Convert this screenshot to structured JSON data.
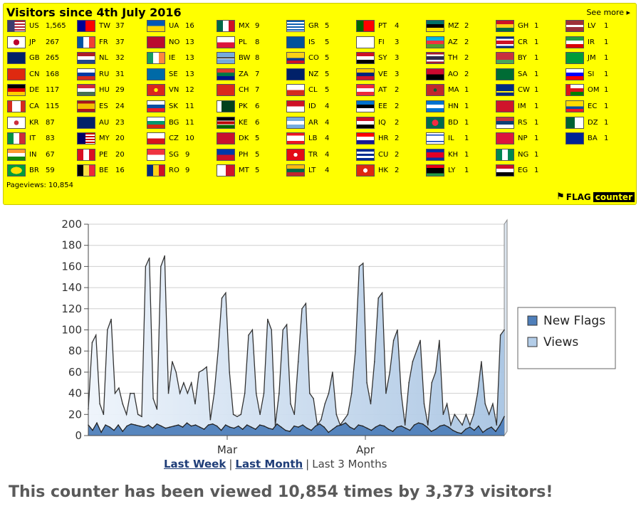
{
  "panel": {
    "title": "Visitors since 4th July 2016",
    "see_more": "See more",
    "pageviews_label": "Pageviews: 10,854",
    "logo_flag": "FLAG",
    "logo_counter": "counter"
  },
  "flag_columns": [
    [
      {
        "code": "US",
        "count": "1,565"
      },
      {
        "code": "JP",
        "count": "267"
      },
      {
        "code": "GB",
        "count": "265"
      },
      {
        "code": "CN",
        "count": "168"
      },
      {
        "code": "DE",
        "count": "117"
      },
      {
        "code": "CA",
        "count": "115"
      },
      {
        "code": "KR",
        "count": "87"
      },
      {
        "code": "IT",
        "count": "83"
      },
      {
        "code": "IN",
        "count": "67"
      },
      {
        "code": "BR",
        "count": "59"
      }
    ],
    [
      {
        "code": "TW",
        "count": "37"
      },
      {
        "code": "FR",
        "count": "37"
      },
      {
        "code": "NL",
        "count": "32"
      },
      {
        "code": "RU",
        "count": "31"
      },
      {
        "code": "HU",
        "count": "29"
      },
      {
        "code": "ES",
        "count": "24"
      },
      {
        "code": "AU",
        "count": "23"
      },
      {
        "code": "MY",
        "count": "20"
      },
      {
        "code": "PE",
        "count": "20"
      },
      {
        "code": "BE",
        "count": "16"
      }
    ],
    [
      {
        "code": "UA",
        "count": "16"
      },
      {
        "code": "NO",
        "count": "13"
      },
      {
        "code": "IE",
        "count": "13"
      },
      {
        "code": "SE",
        "count": "13"
      },
      {
        "code": "VN",
        "count": "12"
      },
      {
        "code": "SK",
        "count": "11"
      },
      {
        "code": "BG",
        "count": "11"
      },
      {
        "code": "CZ",
        "count": "10"
      },
      {
        "code": "SG",
        "count": "9"
      },
      {
        "code": "RO",
        "count": "9"
      }
    ],
    [
      {
        "code": "MX",
        "count": "9"
      },
      {
        "code": "PL",
        "count": "8"
      },
      {
        "code": "BW",
        "count": "8"
      },
      {
        "code": "ZA",
        "count": "7"
      },
      {
        "code": "CH",
        "count": "7"
      },
      {
        "code": "PK",
        "count": "6"
      },
      {
        "code": "KE",
        "count": "6"
      },
      {
        "code": "DK",
        "count": "5"
      },
      {
        "code": "PH",
        "count": "5"
      },
      {
        "code": "MT",
        "count": "5"
      }
    ],
    [
      {
        "code": "GR",
        "count": "5"
      },
      {
        "code": "IS",
        "count": "5"
      },
      {
        "code": "CO",
        "count": "5"
      },
      {
        "code": "NZ",
        "count": "5"
      },
      {
        "code": "CL",
        "count": "5"
      },
      {
        "code": "ID",
        "count": "4"
      },
      {
        "code": "AR",
        "count": "4"
      },
      {
        "code": "LB",
        "count": "4"
      },
      {
        "code": "TR",
        "count": "4"
      },
      {
        "code": "LT",
        "count": "4"
      }
    ],
    [
      {
        "code": "PT",
        "count": "4"
      },
      {
        "code": "FI",
        "count": "3"
      },
      {
        "code": "SY",
        "count": "3"
      },
      {
        "code": "VE",
        "count": "3"
      },
      {
        "code": "AT",
        "count": "2"
      },
      {
        "code": "EE",
        "count": "2"
      },
      {
        "code": "IQ",
        "count": "2"
      },
      {
        "code": "HR",
        "count": "2"
      },
      {
        "code": "CU",
        "count": "2"
      },
      {
        "code": "HK",
        "count": "2"
      }
    ],
    [
      {
        "code": "MZ",
        "count": "2"
      },
      {
        "code": "AZ",
        "count": "2"
      },
      {
        "code": "TH",
        "count": "2"
      },
      {
        "code": "AO",
        "count": "2"
      },
      {
        "code": "MA",
        "count": "1"
      },
      {
        "code": "HN",
        "count": "1"
      },
      {
        "code": "BD",
        "count": "1"
      },
      {
        "code": "IL",
        "count": "1"
      },
      {
        "code": "KH",
        "count": "1"
      },
      {
        "code": "LY",
        "count": "1"
      }
    ],
    [
      {
        "code": "GH",
        "count": "1"
      },
      {
        "code": "CR",
        "count": "1"
      },
      {
        "code": "BY",
        "count": "1"
      },
      {
        "code": "SA",
        "count": "1"
      },
      {
        "code": "CW",
        "count": "1"
      },
      {
        "code": "IM",
        "count": "1"
      },
      {
        "code": "RS",
        "count": "1"
      },
      {
        "code": "NP",
        "count": "1"
      },
      {
        "code": "NG",
        "count": "1"
      },
      {
        "code": "EG",
        "count": "1"
      }
    ],
    [
      {
        "code": "LV",
        "count": "1"
      },
      {
        "code": "IR",
        "count": "1"
      },
      {
        "code": "JM",
        "count": "1"
      },
      {
        "code": "SI",
        "count": "1"
      },
      {
        "code": "OM",
        "count": "1"
      },
      {
        "code": "EC",
        "count": "1"
      },
      {
        "code": "DZ",
        "count": "1"
      },
      {
        "code": "BA",
        "count": "1"
      }
    ]
  ],
  "flag_styles": {
    "US": "linear-gradient(to right,#3c3b6e 40%,transparent 40%),repeating-linear-gradient(#b22234 0 2px,#ffffff 2px 4px)",
    "JP": "radial-gradient(circle,#bc002d 28%,#ffffff 30%)",
    "GB": "linear-gradient(#012169,#012169)",
    "CN": "linear-gradient(#de2910,#de2910)",
    "DE": "linear-gradient(#000 33%,#dd0000 33% 66%,#ffce00 66%)",
    "CA": "linear-gradient(to right,#d52b1e 25%,#ffffff 25% 75%,#d52b1e 75%)",
    "KR": "radial-gradient(circle,#cd2e3a 22%,#ffffff 24%)",
    "IT": "linear-gradient(to right,#009246 33%,#ffffff 33% 66%,#ce2b37 66%)",
    "IN": "linear-gradient(#ff9933 33%,#ffffff 33% 66%,#138808 66%)",
    "BR": "radial-gradient(ellipse,#fedf00 45%,#009c3b 47%)",
    "TW": "linear-gradient(to right,#000095 45%,#fe0000 45%)",
    "FR": "linear-gradient(to right,#0055a4 33%,#ffffff 33% 66%,#ef4135 66%)",
    "NL": "linear-gradient(#ae1c28 33%,#ffffff 33% 66%,#21468b 66%)",
    "RU": "linear-gradient(#ffffff 33%,#0039a6 33% 66%,#d52b1e 66%)",
    "HU": "linear-gradient(#ce2939 33%,#ffffff 33% 66%,#477050 66%)",
    "ES": "linear-gradient(#aa151b 25%,#f1bf00 25% 75%,#aa151b 75%)",
    "AU": "linear-gradient(#012169,#012169)",
    "MY": "linear-gradient(to right,#010066 45%,transparent 45%),repeating-linear-gradient(#cc0001 0 2px,#ffffff 2px 4px)",
    "PE": "linear-gradient(to right,#d91023 33%,#ffffff 33% 66%,#d91023 66%)",
    "BE": "linear-gradient(to right,#000 33%,#fae042 33% 66%,#ed2939 66%)",
    "UA": "linear-gradient(#0057b7 50%,#ffd700 50%)",
    "NO": "linear-gradient(#ba0c2f,#ba0c2f)",
    "IE": "linear-gradient(to right,#169b62 33%,#ffffff 33% 66%,#ff883e 66%)",
    "SE": "linear-gradient(#006aa7,#006aa7)",
    "VN": "radial-gradient(circle,#ffff00 18%,#da251d 20%)",
    "SK": "linear-gradient(#ffffff 33%,#0b4ea2 33% 66%,#ee1c25 66%)",
    "BG": "linear-gradient(#ffffff 33%,#00966e 33% 66%,#d62612 66%)",
    "CZ": "linear-gradient(#ffffff 50%,#d7141a 50%)",
    "SG": "linear-gradient(#ef3340 50%,#ffffff 50%)",
    "RO": "linear-gradient(to right,#002b7f 33%,#fcd116 33% 66%,#ce1126 66%)",
    "MX": "linear-gradient(to right,#006847 33%,#ffffff 33% 66%,#ce1126 66%)",
    "PL": "linear-gradient(#ffffff 50%,#dc143c 50%)",
    "BW": "linear-gradient(#75aadb 40%,#ffffff 40% 45%,#000 45% 55%,#ffffff 55% 60%,#75aadb 60%)",
    "ZA": "linear-gradient(#e03c31 33%,#007749 33% 66%,#001489 66%)",
    "CH": "linear-gradient(#da291c,#da291c)",
    "PK": "linear-gradient(to right,#ffffff 25%,#01411c 25%)",
    "KE": "linear-gradient(#000 30%,#ffffff 30% 35%,#bb0000 35% 65%,#ffffff 65% 70%,#006600 70%)",
    "DK": "linear-gradient(#c8102e,#c8102e)",
    "PH": "linear-gradient(#0038a8 50%,#ce1126 50%)",
    "MT": "linear-gradient(to right,#ffffff 50%,#cf142b 50%)",
    "GR": "repeating-linear-gradient(#0d5eaf 0 2px,#ffffff 2px 4px)",
    "IS": "linear-gradient(#02529c,#02529c)",
    "CO": "linear-gradient(#fcd116 50%,#003893 50% 75%,#ce1126 75%)",
    "NZ": "linear-gradient(#012169,#012169)",
    "CL": "linear-gradient(#ffffff 50%,#d52b1e 50%)",
    "ID": "linear-gradient(#ce1126 50%,#ffffff 50%)",
    "AR": "linear-gradient(#74acdf 33%,#ffffff 33% 66%,#74acdf 66%)",
    "LB": "linear-gradient(#ee161f 25%,#ffffff 25% 75%,#ee161f 75%)",
    "TR": "radial-gradient(circle,#ffffff 18%,#e30a17 20%)",
    "LT": "linear-gradient(#fdb913 33%,#006a44 33% 66%,#c1272d 66%)",
    "PT": "linear-gradient(to right,#006600 40%,#ff0000 40%)",
    "FI": "linear-gradient(#ffffff,#ffffff)",
    "SY": "linear-gradient(#ce1126 33%,#ffffff 33% 66%,#000 66%)",
    "VE": "linear-gradient(#ffcc00 33%,#00247d 33% 66%,#cf142b 66%)",
    "AT": "linear-gradient(#ed2939 33%,#ffffff 33% 66%,#ed2939 66%)",
    "EE": "linear-gradient(#0072ce 33%,#000 33% 66%,#ffffff 66%)",
    "IQ": "linear-gradient(#ce1126 33%,#ffffff 33% 66%,#000 66%)",
    "HR": "linear-gradient(#ff0000 33%,#ffffff 33% 66%,#171796 66%)",
    "CU": "repeating-linear-gradient(#002a8f 0 3px,#ffffff 3px 6px)",
    "HK": "radial-gradient(circle,#ffffff 20%,#de2910 22%)",
    "MZ": "linear-gradient(#007168 33%,#000 33% 66%,#fce100 66%)",
    "AZ": "linear-gradient(#00b5e2 33%,#ef3340 33% 66%,#509e2f 66%)",
    "TH": "linear-gradient(#a51931 17%,#f4f5f8 17% 33%,#2d2a4a 33% 67%,#f4f5f8 67% 83%,#a51931 83%)",
    "AO": "linear-gradient(#cc092f 50%,#000 50%)",
    "MA": "radial-gradient(circle,#006233 15%,#c1272d 17%)",
    "HN": "linear-gradient(#0073cf 33%,#ffffff 33% 66%,#0073cf 66%)",
    "BD": "radial-gradient(circle,#f42a41 30%,#006a4e 32%)",
    "IL": "linear-gradient(#ffffff 15%,#0038b8 15% 25%,#ffffff 25% 75%,#0038b8 75% 85%,#ffffff 85%)",
    "KH": "linear-gradient(#032ea1 25%,#e00025 25% 75%,#032ea1 75%)",
    "LY": "linear-gradient(#e70013 25%,#000 25% 75%,#239e46 75%)",
    "GH": "linear-gradient(#ce1126 33%,#fcd116 33% 66%,#006b3f 66%)",
    "CR": "linear-gradient(#002b7f 17%,#ffffff 17% 33%,#ce1126 33% 67%,#ffffff 67% 83%,#002b7f 83%)",
    "BY": "linear-gradient(#c8313e 66%,#4aa657 66%)",
    "SA": "linear-gradient(#006c35,#006c35)",
    "CW": "linear-gradient(#002b7f 60%,#f9e814 60% 72%,#002b7f 72%)",
    "IM": "linear-gradient(#cf142b,#cf142b)",
    "RS": "linear-gradient(#c6363c 33%,#0c4076 33% 66%,#ffffff 66%)",
    "NP": "linear-gradient(#dc143c,#dc143c)",
    "NG": "linear-gradient(to right,#008751 33%,#ffffff 33% 66%,#008751 66%)",
    "EG": "linear-gradient(#ce1126 33%,#ffffff 33% 66%,#000 66%)",
    "LV": "linear-gradient(#9e3039 40%,#ffffff 40% 60%,#9e3039 60%)",
    "IR": "linear-gradient(#239f40 33%,#ffffff 33% 66%,#da0000 66%)",
    "JM": "linear-gradient(#009b3a,#009b3a)",
    "SI": "linear-gradient(#ffffff 33%,#0000ff 33% 66%,#ff0000 66%)",
    "OM": "linear-gradient(to right,#db161b 25%,transparent 25%),linear-gradient(#ffffff 33%,#db161b 33% 66%,#008000 66%)",
    "EC": "linear-gradient(#ffdd00 50%,#034ea2 50% 75%,#ed1c24 75%)",
    "DZ": "linear-gradient(to right,#006233 50%,#ffffff 50%)",
    "BA": "linear-gradient(#002395,#002395)"
  },
  "chart_data": {
    "type": "area",
    "x_tick_labels": [
      "Mar",
      "Apr"
    ],
    "y_ticks": [
      0,
      20,
      40,
      60,
      80,
      100,
      120,
      140,
      160,
      180,
      200
    ],
    "ylim": [
      0,
      200
    ],
    "grid": true,
    "legend_position": "right",
    "series": [
      {
        "name": "New Flags",
        "color": "#4f7fba",
        "values": [
          10,
          5,
          12,
          3,
          10,
          8,
          5,
          10,
          4,
          9,
          11,
          10,
          9,
          8,
          10,
          7,
          11,
          9,
          7,
          8,
          9,
          10,
          8,
          12,
          9,
          10,
          8,
          6,
          10,
          11,
          9,
          5,
          10,
          8,
          7,
          9,
          6,
          10,
          8,
          6,
          10,
          9,
          7,
          6,
          11,
          8,
          5,
          4,
          9,
          8,
          10,
          7,
          5,
          9,
          11,
          8,
          3,
          6,
          9,
          10,
          12,
          8,
          6,
          10,
          9,
          7,
          5,
          8,
          10,
          9,
          6,
          4,
          8,
          9,
          7,
          5,
          10,
          12,
          11,
          8,
          4,
          6,
          9,
          10,
          8,
          5,
          3,
          2,
          6,
          8,
          5,
          9,
          3,
          6,
          8,
          4,
          10,
          18
        ]
      },
      {
        "name": "Views",
        "color": "#b3cde8",
        "values": [
          25,
          88,
          95,
          30,
          20,
          100,
          110,
          40,
          45,
          30,
          20,
          40,
          40,
          20,
          18,
          160,
          168,
          35,
          25,
          160,
          170,
          40,
          70,
          60,
          40,
          50,
          40,
          50,
          30,
          60,
          62,
          65,
          15,
          40,
          80,
          130,
          135,
          60,
          20,
          18,
          20,
          40,
          95,
          100,
          40,
          20,
          40,
          110,
          100,
          10,
          40,
          100,
          105,
          30,
          20,
          70,
          120,
          125,
          40,
          35,
          10,
          15,
          30,
          40,
          60,
          20,
          10,
          15,
          20,
          40,
          80,
          160,
          163,
          50,
          30,
          70,
          130,
          135,
          40,
          60,
          90,
          100,
          40,
          10,
          50,
          70,
          80,
          90,
          30,
          10,
          50,
          60,
          90,
          20,
          30,
          10,
          20,
          15,
          10,
          20,
          10,
          20,
          40,
          70,
          30,
          20,
          30,
          10,
          95,
          100
        ]
      }
    ]
  },
  "links": {
    "last_week": "Last Week",
    "last_month": "Last Month",
    "last_3_months": "Last 3 Months",
    "separator": "|"
  },
  "summary": "This counter has been viewed 10,854 times by 3,373 visitors!"
}
